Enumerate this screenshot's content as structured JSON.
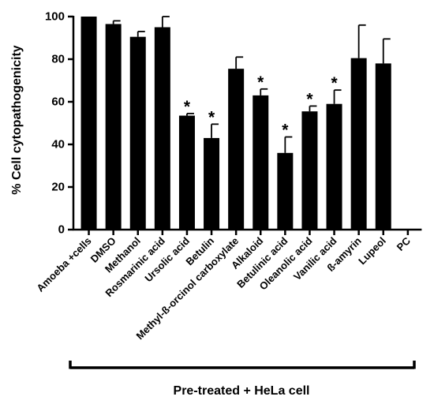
{
  "chart_data": {
    "type": "bar",
    "ylabel": "% Cell cytopathogenicity",
    "ylim": [
      0,
      100
    ],
    "yticks": [
      0,
      20,
      40,
      60,
      80,
      100
    ],
    "grid": false,
    "bar_color": "#000000",
    "categories": [
      "Amoeba +cells",
      "DMSO",
      "Methanol",
      "Rosmarinic acid",
      "Ursolic acid",
      "Betulin",
      "Methyl-ß-orcinol carboxylate",
      "Alkaloid",
      "Betulinic acid",
      "Oleanolic acid",
      "Vanilic acid",
      "ß-amyrin",
      "Lupeol",
      "PC"
    ],
    "values": [
      100,
      96.5,
      90.5,
      95,
      53.5,
      43,
      75.5,
      63,
      36,
      55.5,
      59,
      80.5,
      78,
      0
    ],
    "error": [
      0,
      1.5,
      2.5,
      5,
      1,
      6.5,
      5.5,
      3,
      7.5,
      2.5,
      6.5,
      15.5,
      11.5,
      0
    ],
    "significant": [
      false,
      false,
      false,
      false,
      true,
      true,
      false,
      true,
      true,
      true,
      true,
      false,
      false,
      false
    ],
    "significance_marker": "*",
    "group_label": "Pre-treated + HeLa cell"
  }
}
